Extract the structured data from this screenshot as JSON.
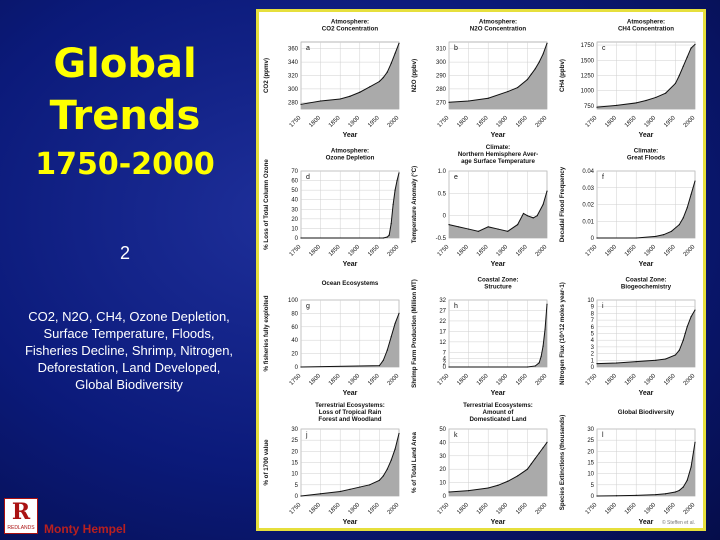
{
  "slide": {
    "title_line1": "Global",
    "title_line2": "Trends",
    "title_line3": "1750-2000",
    "number": "2",
    "description": "CO2, N2O, CH4, Ozone Depletion, Surface Temperature, Floods, Fisheries Decline, Shrimp, Nitrogen, Deforestation, Land Developed, Global Biodiversity",
    "presenter": "Monty Hempel",
    "logo_letter": "R",
    "logo_text": "REDLANDS"
  },
  "figure": {
    "copyright": "© Steffen et al.",
    "colors": {
      "fill": "#aaaaaa",
      "line": "#111111",
      "grid": "#cfcfcf",
      "text": "#111111"
    }
  },
  "chart_data": [
    {
      "type": "area",
      "letter": "a",
      "title": [
        "Atmosphere:",
        "CO2 Concentration"
      ],
      "ylabel": "CO2 (ppmv)",
      "xlabel": "Year",
      "xticks": [
        "1750",
        "1800",
        "1850",
        "1900",
        "1950",
        "2000"
      ],
      "yticks": [
        "280",
        "300",
        "320",
        "340",
        "360"
      ],
      "ylim": [
        270,
        370
      ],
      "x": [
        1750,
        1800,
        1850,
        1875,
        1900,
        1925,
        1950,
        1960,
        1970,
        1980,
        1990,
        2000
      ],
      "y": [
        277,
        282,
        285,
        289,
        295,
        303,
        311,
        317,
        325,
        338,
        353,
        368
      ]
    },
    {
      "type": "area",
      "letter": "b",
      "title": [
        "Atmosphere:",
        "N2O Concentration"
      ],
      "ylabel": "N2O (ppbv)",
      "xlabel": "Year",
      "xticks": [
        "1750",
        "1800",
        "1850",
        "1900",
        "1950",
        "2000"
      ],
      "yticks": [
        "270",
        "280",
        "290",
        "300",
        "310"
      ],
      "ylim": [
        265,
        315
      ],
      "x": [
        1750,
        1800,
        1850,
        1900,
        1925,
        1950,
        1960,
        1970,
        1980,
        1990,
        2000
      ],
      "y": [
        270,
        271,
        273,
        278,
        281,
        287,
        291,
        295,
        300,
        306,
        314
      ]
    },
    {
      "type": "area",
      "letter": "c",
      "title": [
        "Atmosphere:",
        "CH4 Concentration"
      ],
      "ylabel": "CH4 (ppbv)",
      "xlabel": "Year",
      "xticks": [
        "1750",
        "1800",
        "1850",
        "1900",
        "1950",
        "2000"
      ],
      "yticks": [
        "750",
        "1000",
        "1250",
        "1500",
        "1750"
      ],
      "ylim": [
        700,
        1800
      ],
      "x": [
        1750,
        1800,
        1850,
        1875,
        1900,
        1925,
        1950,
        1960,
        1970,
        1980,
        1990,
        2000
      ],
      "y": [
        730,
        760,
        800,
        840,
        890,
        960,
        1120,
        1250,
        1400,
        1550,
        1700,
        1760
      ]
    },
    {
      "type": "area",
      "letter": "d",
      "title": [
        "Atmosphere:",
        "Ozone Depletion"
      ],
      "ylabel": "% Loss of Total Column Ozone",
      "xlabel": "Year",
      "xticks": [
        "1750",
        "1800",
        "1850",
        "1900",
        "1950",
        "2000"
      ],
      "yticks": [
        "0",
        "10",
        "20",
        "30",
        "40",
        "50",
        "60",
        "70"
      ],
      "ylim": [
        0,
        70
      ],
      "x": [
        1750,
        1950,
        1960,
        1970,
        1975,
        1980,
        1985,
        1990,
        1995,
        2000
      ],
      "y": [
        0,
        0,
        0,
        1,
        3,
        15,
        35,
        50,
        60,
        68
      ]
    },
    {
      "type": "area",
      "letter": "e",
      "title": [
        "Climate:",
        "Northern Hemisphere Aver-",
        "age Surface Temperature"
      ],
      "ylabel": "Temperature Anomaly (°C)",
      "xlabel": "Year",
      "xticks": [
        "1750",
        "1800",
        "1850",
        "1900",
        "1950",
        "2000"
      ],
      "yticks": [
        "-0.5",
        "0",
        "0.5",
        "1.0"
      ],
      "ylim": [
        -0.5,
        1.0
      ],
      "x": [
        1750,
        1775,
        1800,
        1825,
        1850,
        1875,
        1900,
        1925,
        1940,
        1950,
        1965,
        1975,
        1990,
        2000
      ],
      "y": [
        -0.2,
        -0.25,
        -0.3,
        -0.35,
        -0.25,
        -0.3,
        -0.35,
        -0.2,
        0.05,
        0.0,
        -0.05,
        0.0,
        0.25,
        0.55
      ]
    },
    {
      "type": "area",
      "letter": "f",
      "title": [
        "Climate:",
        "Great Floods"
      ],
      "ylabel": "Decadal Flood Frequency",
      "xlabel": "Year",
      "xticks": [
        "1750",
        "1800",
        "1850",
        "1900",
        "1950",
        "2000"
      ],
      "yticks": [
        "0",
        "0.01",
        "0.02",
        "0.03",
        "0.04"
      ],
      "ylim": [
        0,
        0.04
      ],
      "x": [
        1750,
        1850,
        1900,
        1920,
        1940,
        1960,
        1970,
        1980,
        1990,
        2000
      ],
      "y": [
        0,
        0,
        0.001,
        0.002,
        0.004,
        0.008,
        0.012,
        0.018,
        0.026,
        0.034
      ]
    },
    {
      "type": "area",
      "letter": "g",
      "title": [
        "Ocean Ecosystems"
      ],
      "ylabel": "% fisheries fully exploited",
      "xlabel": "Year",
      "xticks": [
        "1750",
        "1800",
        "1850",
        "1900",
        "1950",
        "2000"
      ],
      "yticks": [
        "0",
        "20",
        "40",
        "60",
        "80",
        "100"
      ],
      "ylim": [
        0,
        100
      ],
      "x": [
        1750,
        1950,
        1960,
        1970,
        1980,
        1990,
        2000
      ],
      "y": [
        0,
        2,
        10,
        25,
        45,
        65,
        80
      ]
    },
    {
      "type": "area",
      "letter": "h",
      "title": [
        "Coastal Zone:",
        "Structure"
      ],
      "ylabel": "Shrimp Farm Production (Million MT)",
      "xlabel": "Year",
      "xticks": [
        "1750",
        "1800",
        "1850",
        "1900",
        "1950",
        "2000"
      ],
      "yticks": [
        "0",
        "2",
        "4",
        "7",
        "12",
        "17",
        "22",
        "27",
        "32"
      ],
      "ylim": [
        0,
        32
      ],
      "x": [
        1750,
        1950,
        1970,
        1980,
        1985,
        1990,
        1995,
        2000
      ],
      "y": [
        0,
        0,
        0.5,
        2,
        5,
        10,
        18,
        30
      ]
    },
    {
      "type": "area",
      "letter": "i",
      "title": [
        "Coastal Zone:",
        "Biogeochemistry"
      ],
      "ylabel": "Nitrogen Flux (10^12 moles year-1)",
      "xlabel": "Year",
      "xticks": [
        "1750",
        "1800",
        "1850",
        "1900",
        "1950",
        "2000"
      ],
      "yticks": [
        "0",
        "1",
        "2",
        "3",
        "4",
        "5",
        "6",
        "7",
        "8",
        "9",
        "10"
      ],
      "ylim": [
        0,
        10
      ],
      "x": [
        1750,
        1800,
        1850,
        1900,
        1925,
        1950,
        1960,
        1970,
        1975,
        1980,
        1990,
        2000
      ],
      "y": [
        0.5,
        0.6,
        0.8,
        1.0,
        1.2,
        1.8,
        2.5,
        4.0,
        5.0,
        6.0,
        7.5,
        8.5
      ]
    },
    {
      "type": "area",
      "letter": "j",
      "title": [
        "Terrestrial Ecosystems:",
        "Loss of Tropical Rain",
        "Forest and Woodland"
      ],
      "ylabel": "% of 1700 value",
      "xlabel": "Year",
      "xticks": [
        "1750",
        "1800",
        "1850",
        "1900",
        "1950",
        "2000"
      ],
      "yticks": [
        "0",
        "5",
        "10",
        "15",
        "20",
        "25",
        "30"
      ],
      "ylim": [
        0,
        30
      ],
      "x": [
        1750,
        1800,
        1850,
        1875,
        1900,
        1925,
        1950,
        1960,
        1970,
        1980,
        1990,
        2000
      ],
      "y": [
        0,
        1,
        2,
        3,
        4,
        5,
        7,
        9,
        12,
        16,
        21,
        28
      ]
    },
    {
      "type": "area",
      "letter": "k",
      "title": [
        "Terrestrial Ecosystems:",
        "Amount of",
        "Domesticated Land"
      ],
      "ylabel": "% of Total Land Area",
      "xlabel": "Year",
      "xticks": [
        "1750",
        "1800",
        "1850",
        "1900",
        "1950",
        "2000"
      ],
      "yticks": [
        "0",
        "10",
        "20",
        "30",
        "40",
        "50"
      ],
      "ylim": [
        0,
        50
      ],
      "x": [
        1750,
        1800,
        1850,
        1875,
        1900,
        1925,
        1950,
        1960,
        1970,
        1980,
        1990,
        2000
      ],
      "y": [
        3,
        4,
        6,
        8,
        11,
        15,
        20,
        24,
        28,
        32,
        36,
        40
      ]
    },
    {
      "type": "area",
      "letter": "l",
      "title": [
        "Global Biodiversity"
      ],
      "ylabel": "Species Extinctions (thousands)",
      "xlabel": "Year",
      "xticks": [
        "1750",
        "1800",
        "1850",
        "1900",
        "1950",
        "2000"
      ],
      "yticks": [
        "0",
        "5",
        "10",
        "15",
        "20",
        "25",
        "30"
      ],
      "ylim": [
        0,
        30
      ],
      "x": [
        1750,
        1800,
        1850,
        1900,
        1925,
        1950,
        1960,
        1970,
        1980,
        1990,
        2000
      ],
      "y": [
        0,
        0.1,
        0.3,
        0.6,
        1,
        1.8,
        2.5,
        4,
        7,
        13,
        24
      ]
    }
  ]
}
